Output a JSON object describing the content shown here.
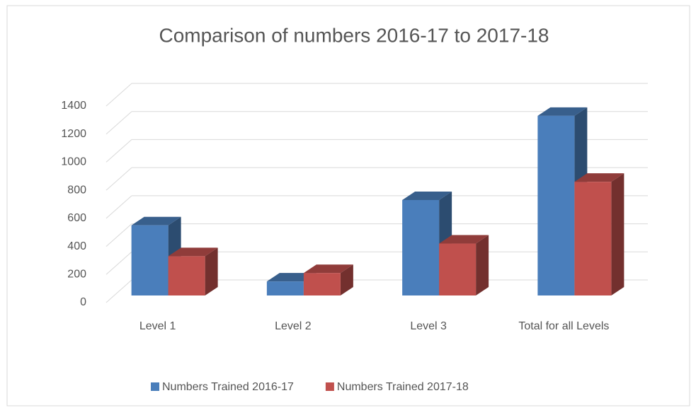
{
  "chart_data": {
    "type": "bar3d",
    "title": "Comparison of numbers 2016-17 to 2017-18",
    "categories": [
      "Level 1",
      "Level 2",
      "Level 3",
      "Total for all Levels"
    ],
    "series": [
      {
        "name": "Numbers Trained 2016-17",
        "color": "#4a7ebb",
        "values": [
          500,
          100,
          680,
          1280
        ]
      },
      {
        "name": "Numbers Trained 2017-18",
        "color": "#c0504d",
        "values": [
          280,
          160,
          370,
          810
        ]
      }
    ],
    "ylim": [
      0,
      1400
    ],
    "yticks": [
      0,
      200,
      400,
      600,
      800,
      1000,
      1200,
      1400
    ],
    "grid": true,
    "legend": "bottom"
  }
}
